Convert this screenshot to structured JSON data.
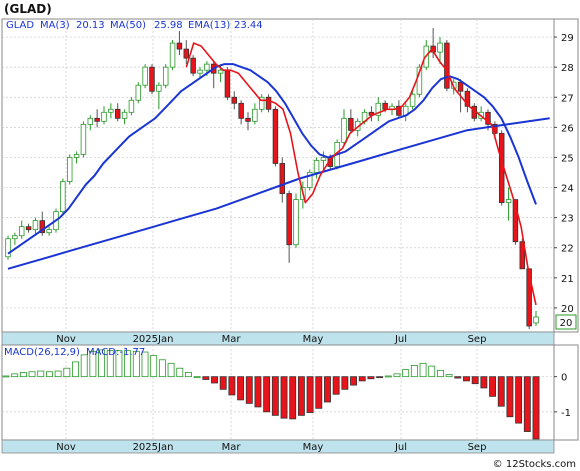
{
  "title": "(GLAD)",
  "legend": {
    "ticker": "GLAD",
    "ma3": {
      "label": "MA(3)",
      "value": "20.13",
      "color": "#e8141b"
    },
    "ma50": {
      "label": "MA(50)",
      "value": "25.98",
      "color": "#1a35d4"
    },
    "ema13": {
      "label": "EMA(13)",
      "value": "23.44",
      "color": "#e8141b"
    }
  },
  "macd_legend": {
    "label": "MACD(26,12,9)",
    "value_label": "MACD:-1.77"
  },
  "last_price_label": "20",
  "watermark": "© 12Stocks.com",
  "colors": {
    "up": "#2a9a2a",
    "down": "#e8141b",
    "blue": "#1a35d4",
    "axis_band": "#bfe3ec",
    "grid": "#c9c9c9"
  },
  "chart_data": [
    {
      "type": "candlestick",
      "name": "price",
      "title": "(GLAD)",
      "ylim": [
        19.2,
        29.6
      ],
      "yticks": [
        "20",
        "21",
        "22",
        "23",
        "24",
        "25",
        "26",
        "27",
        "28",
        "29"
      ],
      "xticks": [
        "Nov",
        "2025Jan",
        "Mar",
        "May",
        "Jul",
        "Sep"
      ],
      "grid": true,
      "candles": [
        [
          21.7,
          22.4,
          21.6,
          22.3
        ],
        [
          22.3,
          22.5,
          22.1,
          22.4
        ],
        [
          22.4,
          22.9,
          22.3,
          22.7
        ],
        [
          22.7,
          22.8,
          22.5,
          22.6
        ],
        [
          22.6,
          23.0,
          22.4,
          22.9
        ],
        [
          22.9,
          23.2,
          22.4,
          22.5
        ],
        [
          22.5,
          22.7,
          22.4,
          22.6
        ],
        [
          22.6,
          23.3,
          22.5,
          23.2
        ],
        [
          23.2,
          24.3,
          23.1,
          24.2
        ],
        [
          24.2,
          25.1,
          24.1,
          25.0
        ],
        [
          25.0,
          25.2,
          24.8,
          25.1
        ],
        [
          25.1,
          26.2,
          25.0,
          26.1
        ],
        [
          26.1,
          26.4,
          25.9,
          26.3
        ],
        [
          26.3,
          26.6,
          26.0,
          26.2
        ],
        [
          26.2,
          26.7,
          26.1,
          26.5
        ],
        [
          26.5,
          26.8,
          26.3,
          26.6
        ],
        [
          26.6,
          26.8,
          26.2,
          26.3
        ],
        [
          26.3,
          26.6,
          26.1,
          26.5
        ],
        [
          26.5,
          27.0,
          26.4,
          26.9
        ],
        [
          26.9,
          27.5,
          26.8,
          27.4
        ],
        [
          27.4,
          28.1,
          27.3,
          28.0
        ],
        [
          28.0,
          28.1,
          27.1,
          27.2
        ],
        [
          27.2,
          27.5,
          26.6,
          27.4
        ],
        [
          27.4,
          28.1,
          27.3,
          28.0
        ],
        [
          28.0,
          28.9,
          27.9,
          28.8
        ],
        [
          28.8,
          29.2,
          28.4,
          28.6
        ],
        [
          28.6,
          28.9,
          28.1,
          28.3
        ],
        [
          28.3,
          28.4,
          27.7,
          27.8
        ],
        [
          27.8,
          28.0,
          27.6,
          27.9
        ],
        [
          27.9,
          28.2,
          27.7,
          28.1
        ],
        [
          28.1,
          28.2,
          27.3,
          27.8
        ],
        [
          27.8,
          28.1,
          27.5,
          27.9
        ],
        [
          27.9,
          28.0,
          26.9,
          27.0
        ],
        [
          27.0,
          27.2,
          26.6,
          26.8
        ],
        [
          26.8,
          26.9,
          26.1,
          26.3
        ],
        [
          26.3,
          26.5,
          25.9,
          26.2
        ],
        [
          26.2,
          26.8,
          26.1,
          26.6
        ],
        [
          26.6,
          27.1,
          26.5,
          27.0
        ],
        [
          27.0,
          27.1,
          26.5,
          26.6
        ],
        [
          26.6,
          26.7,
          24.7,
          24.8
        ],
        [
          24.8,
          25.0,
          23.5,
          23.8
        ],
        [
          23.8,
          23.9,
          21.5,
          22.1
        ],
        [
          22.1,
          23.8,
          22.0,
          23.6
        ],
        [
          23.6,
          24.2,
          23.3,
          24.0
        ],
        [
          24.0,
          24.6,
          23.9,
          24.5
        ],
        [
          24.5,
          25.0,
          24.3,
          24.9
        ],
        [
          24.9,
          25.2,
          24.6,
          25.0
        ],
        [
          25.0,
          25.1,
          24.6,
          24.7
        ],
        [
          24.7,
          25.6,
          24.6,
          25.5
        ],
        [
          25.5,
          26.6,
          25.4,
          26.3
        ],
        [
          26.3,
          26.6,
          25.8,
          25.9
        ],
        [
          25.9,
          26.3,
          25.7,
          26.2
        ],
        [
          26.2,
          26.6,
          26.1,
          26.5
        ],
        [
          26.5,
          26.7,
          26.2,
          26.4
        ],
        [
          26.4,
          27.0,
          26.2,
          26.8
        ],
        [
          26.8,
          26.9,
          26.5,
          26.6
        ],
        [
          26.6,
          26.8,
          26.4,
          26.7
        ],
        [
          26.7,
          26.9,
          26.3,
          26.4
        ],
        [
          26.4,
          26.8,
          26.2,
          26.7
        ],
        [
          26.7,
          27.2,
          26.6,
          27.1
        ],
        [
          27.1,
          28.1,
          27.0,
          28.0
        ],
        [
          28.0,
          28.9,
          27.9,
          28.7
        ],
        [
          28.7,
          29.3,
          28.3,
          28.5
        ],
        [
          28.5,
          29.0,
          28.1,
          28.8
        ],
        [
          28.8,
          28.9,
          27.2,
          27.3
        ],
        [
          27.3,
          27.6,
          27.1,
          27.5
        ],
        [
          27.5,
          27.6,
          26.5,
          27.2
        ],
        [
          27.2,
          27.3,
          26.5,
          26.7
        ],
        [
          26.7,
          26.8,
          26.2,
          26.3
        ],
        [
          26.3,
          26.7,
          26.2,
          26.5
        ],
        [
          26.5,
          26.6,
          25.9,
          26.1
        ],
        [
          26.1,
          26.2,
          25.6,
          25.8
        ],
        [
          25.8,
          25.9,
          23.4,
          23.5
        ],
        [
          23.5,
          24.0,
          22.9,
          23.6
        ],
        [
          23.6,
          23.6,
          22.1,
          22.2
        ],
        [
          22.2,
          22.3,
          21.3,
          21.3
        ],
        [
          21.3,
          21.3,
          19.3,
          19.4
        ],
        [
          19.5,
          19.9,
          19.4,
          19.7
        ]
      ],
      "ma50": [
        21.3,
        21.5,
        21.7,
        21.9,
        22.1,
        22.3,
        22.5,
        22.7,
        22.9,
        23.1,
        23.3,
        23.55,
        23.8,
        24.05,
        24.3,
        24.5,
        24.7,
        24.9,
        25.1,
        25.3,
        25.5,
        25.7,
        25.9,
        26.0,
        26.1,
        26.2,
        26.3
      ],
      "ma3": [
        28.0,
        28.8,
        28.7,
        28.4,
        28.1,
        27.9,
        27.9,
        27.8,
        27.5,
        27.2,
        26.9,
        26.9,
        26.8,
        26.6,
        25.8,
        24.5,
        23.5,
        23.8,
        24.4,
        24.8,
        25.1,
        25.3,
        25.8,
        26.0,
        26.2,
        26.4,
        26.5,
        26.6,
        26.6,
        26.7,
        27.0,
        27.6,
        28.3,
        28.6,
        28.2,
        27.9,
        27.3,
        27.0,
        26.7,
        26.5,
        26.3,
        26.1,
        25.2,
        24.4,
        23.6,
        22.7,
        21.2,
        20.1
      ],
      "ema13": [
        21.8,
        22.0,
        22.2,
        22.4,
        22.6,
        22.8,
        23.0,
        23.3,
        23.7,
        24.1,
        24.4,
        24.8,
        25.1,
        25.4,
        25.7,
        25.9,
        26.1,
        26.3,
        26.6,
        26.9,
        27.2,
        27.4,
        27.6,
        27.8,
        28.0,
        28.1,
        28.1,
        28.0,
        27.9,
        27.7,
        27.5,
        27.2,
        26.8,
        26.3,
        25.8,
        25.4,
        25.1,
        25.0,
        25.1,
        25.2,
        25.4,
        25.6,
        25.8,
        26.0,
        26.2,
        26.3,
        26.4,
        26.6,
        26.9,
        27.3,
        27.6,
        27.7,
        27.6,
        27.4,
        27.2,
        27.0,
        26.7,
        26.3,
        25.7,
        25.0,
        24.2,
        23.44
      ]
    },
    {
      "type": "bar",
      "name": "macd",
      "title": "MACD(26,12,9)",
      "ylim": [
        -1.8,
        0.9
      ],
      "yticks": [
        "0",
        "-1"
      ],
      "xticks": [
        "Nov",
        "2025Jan",
        "Mar",
        "May",
        "Jul",
        "Sep"
      ],
      "values": [
        0.02,
        0.08,
        0.12,
        0.14,
        0.16,
        0.14,
        0.16,
        0.24,
        0.42,
        0.62,
        0.72,
        0.76,
        0.74,
        0.74,
        0.74,
        0.72,
        0.7,
        0.6,
        0.48,
        0.38,
        0.24,
        0.12,
        0.0,
        -0.08,
        -0.18,
        -0.36,
        -0.52,
        -0.66,
        -0.76,
        -0.86,
        -1.0,
        -1.1,
        -1.18,
        -1.2,
        -1.1,
        -1.02,
        -0.9,
        -0.72,
        -0.5,
        -0.36,
        -0.24,
        -0.12,
        -0.06,
        -0.02,
        0.02,
        0.08,
        0.2,
        0.32,
        0.38,
        0.3,
        0.18,
        0.06,
        -0.04,
        -0.12,
        -0.2,
        -0.32,
        -0.56,
        -0.84,
        -1.14,
        -1.32,
        -1.56,
        -1.77
      ]
    }
  ]
}
